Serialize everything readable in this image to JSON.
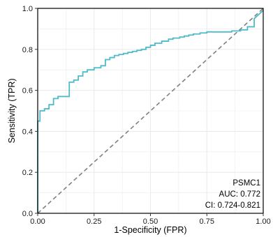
{
  "chart_data": {
    "type": "line",
    "title": "",
    "xlabel": "1-Specificity (FPR)",
    "ylabel": "Sensitivity (TPR)",
    "xlim": [
      0,
      1
    ],
    "ylim": [
      0,
      1
    ],
    "grid": true,
    "x_ticks": [
      "0.00",
      "0.25",
      "0.50",
      "0.75",
      "1.00"
    ],
    "y_ticks": [
      "0.0",
      "0.2",
      "0.4",
      "0.6",
      "0.8",
      "1.0"
    ],
    "colors": {
      "roc": "#4EBBCA",
      "diagonal": "#808080",
      "panel_border": "#000000",
      "grid": "#ebebeb"
    },
    "series": [
      {
        "name": "PSMC1",
        "x": [
          0.0,
          0.0,
          0.01,
          0.01,
          0.03,
          0.03,
          0.05,
          0.05,
          0.07,
          0.07,
          0.09,
          0.09,
          0.14,
          0.14,
          0.16,
          0.16,
          0.18,
          0.18,
          0.2,
          0.2,
          0.22,
          0.22,
          0.25,
          0.25,
          0.28,
          0.28,
          0.3,
          0.3,
          0.32,
          0.32,
          0.34,
          0.34,
          0.36,
          0.36,
          0.38,
          0.38,
          0.4,
          0.4,
          0.42,
          0.42,
          0.44,
          0.44,
          0.46,
          0.46,
          0.48,
          0.48,
          0.5,
          0.5,
          0.52,
          0.52,
          0.55,
          0.55,
          0.58,
          0.58,
          0.6,
          0.6,
          0.63,
          0.63,
          0.65,
          0.65,
          0.67,
          0.67,
          0.69,
          0.69,
          0.72,
          0.72,
          0.75,
          0.75,
          0.8,
          0.8,
          0.86,
          0.86,
          0.9,
          0.9,
          0.93,
          0.93,
          0.96,
          0.96,
          1.0
        ],
        "y": [
          0.0,
          0.45,
          0.45,
          0.5,
          0.5,
          0.51,
          0.51,
          0.53,
          0.53,
          0.56,
          0.56,
          0.57,
          0.57,
          0.64,
          0.64,
          0.65,
          0.65,
          0.67,
          0.67,
          0.69,
          0.69,
          0.7,
          0.7,
          0.71,
          0.71,
          0.72,
          0.72,
          0.75,
          0.75,
          0.76,
          0.76,
          0.77,
          0.77,
          0.775,
          0.775,
          0.78,
          0.78,
          0.785,
          0.785,
          0.79,
          0.79,
          0.795,
          0.795,
          0.8,
          0.8,
          0.81,
          0.81,
          0.82,
          0.82,
          0.83,
          0.83,
          0.84,
          0.84,
          0.85,
          0.85,
          0.855,
          0.855,
          0.86,
          0.86,
          0.865,
          0.865,
          0.87,
          0.87,
          0.875,
          0.875,
          0.88,
          0.88,
          0.885,
          0.885,
          0.885,
          0.885,
          0.89,
          0.89,
          0.895,
          0.895,
          0.91,
          0.91,
          0.95,
          0.99
        ]
      }
    ],
    "reference_line": {
      "x": [
        0,
        1
      ],
      "y": [
        0,
        1
      ],
      "style": "dashed"
    },
    "annotation": {
      "lines": [
        "PSMC1",
        "AUC: 0.772",
        "CI: 0.724-0.821"
      ],
      "placement": "bottom-right"
    }
  }
}
